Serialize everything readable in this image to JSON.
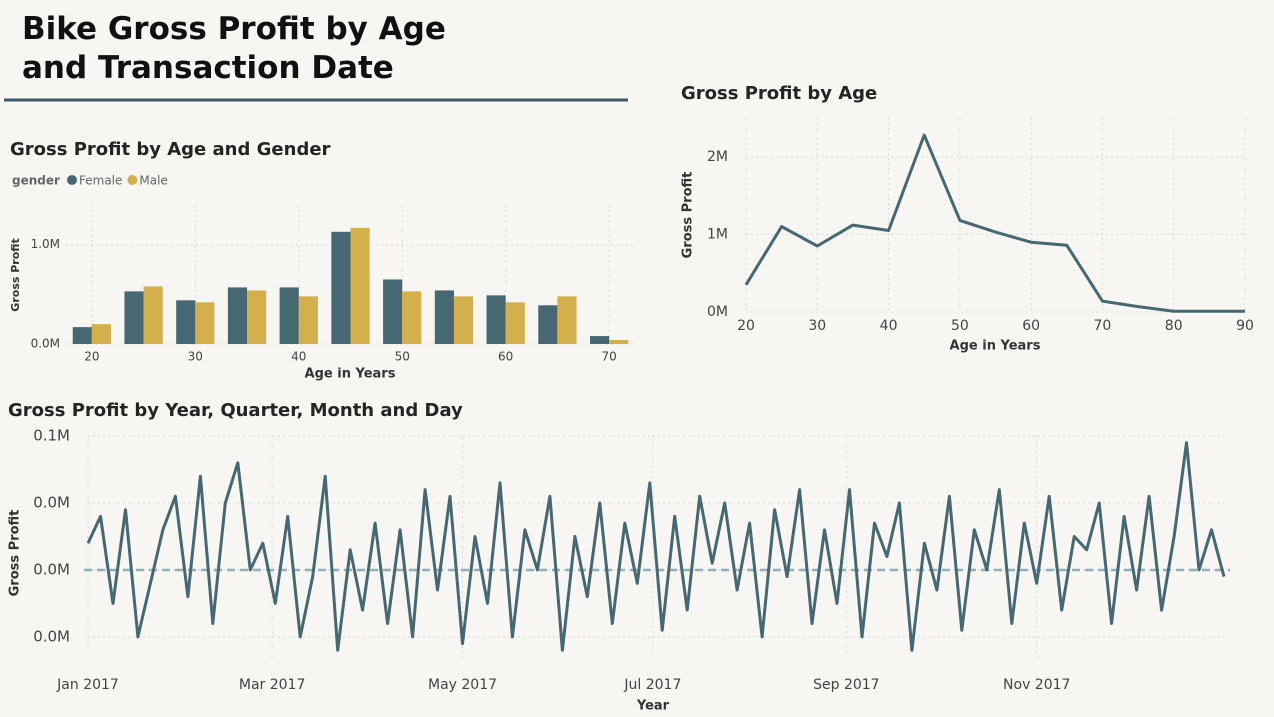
{
  "title": "Bike Gross Profit by Age and Transaction Date",
  "chart_data": [
    {
      "type": "bar",
      "title": "Gross Profit by Age and Gender",
      "legend_title": "gender",
      "x_label": "Age in Years",
      "y_label": "Gross Profit",
      "categories": [
        20,
        null,
        30,
        null,
        40,
        null,
        50,
        null,
        60,
        null,
        70
      ],
      "series": [
        {
          "name": "Female",
          "color": "#456872",
          "values": [
            0.17,
            0.53,
            0.44,
            0.57,
            0.57,
            1.13,
            0.65,
            0.54,
            0.49,
            0.39,
            0.08
          ]
        },
        {
          "name": "Male",
          "color": "#d4b04c",
          "values": [
            0.2,
            0.58,
            0.42,
            0.54,
            0.48,
            1.17,
            0.53,
            0.48,
            0.42,
            0.48,
            0.04
          ]
        }
      ],
      "ylim": [
        0,
        1.4
      ],
      "yticks": [
        {
          "value": 0,
          "label": "0.0M"
        },
        {
          "value": 1,
          "label": "1.0M"
        }
      ],
      "grid": true
    },
    {
      "type": "line",
      "title": "Gross Profit by Age",
      "x_label": "Age in Years",
      "y_label": "Gross Profit",
      "x": [
        20,
        25,
        30,
        35,
        40,
        45,
        50,
        55,
        60,
        65,
        70,
        75,
        80,
        85,
        90
      ],
      "series": [
        {
          "name": "Gross Profit",
          "color": "#456872",
          "values": [
            0.35,
            1.1,
            0.85,
            1.12,
            1.05,
            2.28,
            1.18,
            1.03,
            0.9,
            0.86,
            0.14,
            0.07,
            0.01,
            0.01,
            0.01
          ]
        }
      ],
      "xlim": [
        20,
        90
      ],
      "xticks": [
        20,
        30,
        40,
        50,
        60,
        70,
        80,
        90
      ],
      "ylim": [
        0,
        2.5
      ],
      "yticks": [
        {
          "value": 0,
          "label": "0M"
        },
        {
          "value": 1,
          "label": "1M"
        },
        {
          "value": 2,
          "label": "2M"
        }
      ],
      "grid": true
    },
    {
      "type": "line",
      "title": "Gross Profit by Year, Quarter, Month and Day",
      "x_label": "Year",
      "y_label": "Gross Profit",
      "x": [
        0,
        4,
        8,
        12,
        16,
        20,
        24,
        28,
        32,
        36,
        40,
        44,
        48,
        52,
        56,
        60,
        64,
        68,
        72,
        76,
        80,
        84,
        88,
        92,
        96,
        100,
        104,
        108,
        112,
        116,
        120,
        124,
        128,
        132,
        136,
        140,
        144,
        148,
        152,
        156,
        160,
        164,
        168,
        172,
        176,
        180,
        184,
        188,
        192,
        196,
        200,
        204,
        208,
        212,
        216,
        220,
        224,
        228,
        232,
        236,
        240,
        244,
        248,
        252,
        256,
        260,
        264,
        268,
        272,
        276,
        280,
        284,
        288,
        292,
        296,
        300,
        304,
        308,
        312,
        316,
        320,
        324,
        328,
        332,
        336,
        340,
        344,
        348,
        352,
        356,
        360,
        364
      ],
      "series": [
        {
          "name": "Gross Profit",
          "color": "#456872",
          "values": [
            0.034,
            0.038,
            0.025,
            0.039,
            0.02,
            0.028,
            0.036,
            0.041,
            0.026,
            0.044,
            0.022,
            0.04,
            0.046,
            0.03,
            0.034,
            0.025,
            0.038,
            0.02,
            0.029,
            0.044,
            0.018,
            0.033,
            0.024,
            0.037,
            0.022,
            0.036,
            0.02,
            0.042,
            0.027,
            0.041,
            0.019,
            0.035,
            0.025,
            0.043,
            0.02,
            0.036,
            0.03,
            0.041,
            0.018,
            0.035,
            0.026,
            0.04,
            0.022,
            0.037,
            0.028,
            0.043,
            0.021,
            0.038,
            0.024,
            0.041,
            0.031,
            0.04,
            0.027,
            0.037,
            0.02,
            0.039,
            0.029,
            0.042,
            0.022,
            0.036,
            0.025,
            0.042,
            0.02,
            0.037,
            0.032,
            0.04,
            0.018,
            0.034,
            0.027,
            0.041,
            0.021,
            0.036,
            0.03,
            0.042,
            0.022,
            0.037,
            0.028,
            0.041,
            0.024,
            0.035,
            0.033,
            0.04,
            0.022,
            0.038,
            0.027,
            0.041,
            0.024,
            0.035,
            0.049,
            0.03,
            0.036,
            0.029
          ]
        }
      ],
      "average_line": 0.03,
      "xlim": [
        0,
        364
      ],
      "xticks": [
        {
          "value": 0,
          "label": "Jan 2017"
        },
        {
          "value": 59,
          "label": "Mar 2017"
        },
        {
          "value": 120,
          "label": "May 2017"
        },
        {
          "value": 181,
          "label": "Jul 2017"
        },
        {
          "value": 243,
          "label": "Sep 2017"
        },
        {
          "value": 304,
          "label": "Nov 2017"
        }
      ],
      "ylim": [
        0.017,
        0.05
      ],
      "yticks": [
        {
          "value": 0.05,
          "label": "0.1M"
        },
        {
          "value": 0.04,
          "label": "0.0M"
        },
        {
          "value": 0.03,
          "label": "0.0M"
        },
        {
          "value": 0.02,
          "label": "0.0M"
        }
      ],
      "grid": true
    }
  ]
}
